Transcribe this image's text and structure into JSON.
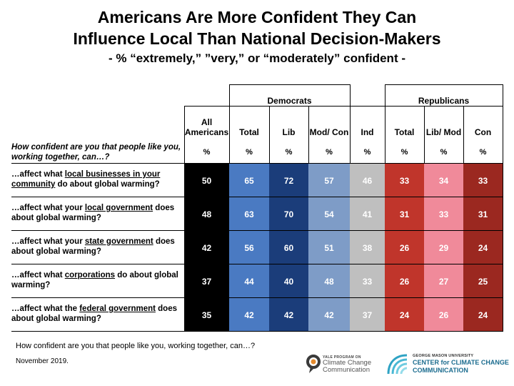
{
  "title_line1": "Americans Are More Confident They Can",
  "title_line2": "Influence Local Than National Decision-Makers",
  "subtitle": "- % “extremely,” ”very,” or “moderately” confident -",
  "question": "How confident are you that people like you, working together, can…?",
  "group_democrats": "Democrats",
  "group_republicans": "Republicans",
  "column_headers": [
    "All Americans",
    "Total",
    "Lib",
    "Mod/ Con",
    "Ind",
    "Total",
    "Lib/ Mod",
    "Con"
  ],
  "pct_label": "%",
  "colors": [
    "#000000",
    "#4a7ac2",
    "#1b3d7a",
    "#7e9cc7",
    "#bfbfbf",
    "#c0352b",
    "#f08a9a",
    "#9b2820"
  ],
  "row_labels": [
    {
      "pre": "…affect what ",
      "u": "local businesses in your community",
      "post": " do about global warming?"
    },
    {
      "pre": "…affect what your ",
      "u": "local government",
      "post": " does about global warming?"
    },
    {
      "pre": "…affect what your ",
      "u": "state government",
      "post": " does about global warming?"
    },
    {
      "pre": "…affect what ",
      "u": "corporations",
      "post": " do about global warming?"
    },
    {
      "pre": "…affect what the ",
      "u": "federal government",
      "post": " does about global warming?"
    }
  ],
  "footnote": "How confident are you that people like you, working together, can…?",
  "date": "November 2019.",
  "logo1_small": "YALE PROGRAM ON",
  "logo1_line1": "Climate Change",
  "logo1_line2": "Communication",
  "logo2_small": "GEORGE MASON UNIVERSITY",
  "logo2_line1": "CENTER for CLIMATE CHANGE",
  "logo2_line2": "COMMUNICATION",
  "chart_data": {
    "type": "table",
    "title": "Americans Are More Confident They Can Influence Local Than National Decision-Makers",
    "subtitle": "- % “extremely,” ”very,” or “moderately” confident -",
    "categories": [
      "…affect what local businesses in your community do about global warming?",
      "…affect what your local government does about global warming?",
      "…affect what your state government does about global warming?",
      "…affect what corporations do about global warming?",
      "…affect what the federal government does about global warming?"
    ],
    "series": [
      {
        "name": "All Americans",
        "values": [
          50,
          48,
          42,
          37,
          35
        ]
      },
      {
        "name": "Democrats Total",
        "values": [
          65,
          63,
          56,
          44,
          42
        ]
      },
      {
        "name": "Democrats Lib",
        "values": [
          72,
          70,
          60,
          40,
          42
        ]
      },
      {
        "name": "Democrats Mod/Con",
        "values": [
          57,
          54,
          51,
          48,
          42
        ]
      },
      {
        "name": "Ind",
        "values": [
          46,
          41,
          38,
          33,
          37
        ]
      },
      {
        "name": "Republicans Total",
        "values": [
          33,
          31,
          26,
          26,
          24
        ]
      },
      {
        "name": "Republicans Lib/Mod",
        "values": [
          34,
          33,
          29,
          27,
          26
        ]
      },
      {
        "name": "Republicans Con",
        "values": [
          33,
          31,
          24,
          25,
          24
        ]
      }
    ]
  }
}
